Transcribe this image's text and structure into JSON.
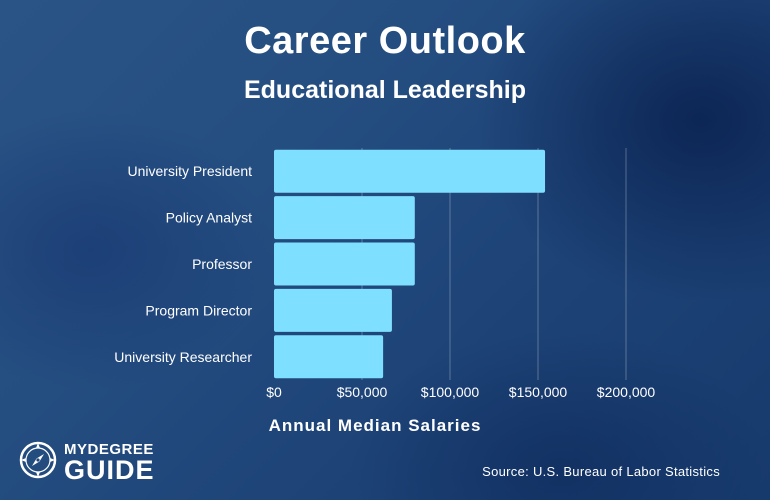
{
  "chart_data": {
    "type": "bar",
    "orientation": "horizontal",
    "title": "Career Outlook",
    "subtitle": "Educational Leadership",
    "xlabel": "Annual Median Salaries",
    "ylabel": "",
    "categories": [
      "University President",
      "Policy Analyst",
      "Professor",
      "Program Director",
      "University Researcher"
    ],
    "values": [
      154000,
      80000,
      80000,
      67000,
      62000
    ],
    "xlim": [
      0,
      200000
    ],
    "xticks": [
      0,
      50000,
      100000,
      150000,
      200000
    ],
    "xtick_labels": [
      "$0",
      "$50,000",
      "$100,000",
      "$150,000",
      "$200,000"
    ],
    "grid": "vertical",
    "legend": "none",
    "bar_color": "#7fdfff"
  },
  "source": "Source: U.S. Bureau of Labor Statistics",
  "logo": {
    "top": "MYDEGREE",
    "bottom": "GUIDE",
    "icon": "compass-icon"
  }
}
